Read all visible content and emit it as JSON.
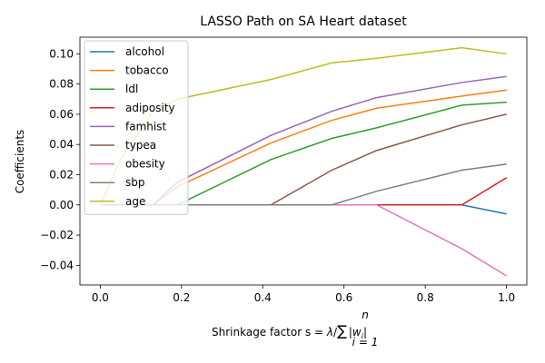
{
  "chart_data": {
    "type": "line",
    "title": "LASSO Path on SA Heart dataset",
    "xlabel": "Shrinkage factor s = λ/∑|wᵢ|",
    "xlabel_parts": {
      "prefix": "Shrinkage factor s = ",
      "lambda": "λ",
      "slash": "/",
      "sum": "∑",
      "sup": "n",
      "sub": "i = 1",
      "abs": "|w",
      "abs_sub": "i",
      "abs_close": "|"
    },
    "ylabel": "Coefficients",
    "xlim": [
      -0.05,
      1.05
    ],
    "ylim": [
      -0.053,
      0.111
    ],
    "xticks": [
      0.0,
      0.2,
      0.4,
      0.6,
      0.8,
      1.0
    ],
    "xtick_labels": [
      "0.0",
      "0.2",
      "0.4",
      "0.6",
      "0.8",
      "1.0"
    ],
    "yticks": [
      -0.04,
      -0.02,
      0.0,
      0.02,
      0.04,
      0.06,
      0.08,
      0.1
    ],
    "ytick_labels": [
      "−0.04",
      "−0.02",
      "0.00",
      "0.02",
      "0.04",
      "0.06",
      "0.08",
      "0.10"
    ],
    "grid": false,
    "legend_position": "top-left",
    "series": [
      {
        "name": "alcohol",
        "color": "#1f77b4",
        "x": [
          0,
          0.68,
          0.89,
          1.0
        ],
        "y": [
          0,
          0,
          0,
          -0.006
        ]
      },
      {
        "name": "tobacco",
        "color": "#ff7f0e",
        "x": [
          0,
          0.13,
          0.19,
          0.42,
          0.57,
          0.68,
          0.89,
          1.0
        ],
        "y": [
          0,
          0,
          0.012,
          0.041,
          0.056,
          0.064,
          0.072,
          0.076
        ]
      },
      {
        "name": "ldl",
        "color": "#2ca02c",
        "x": [
          0,
          0.19,
          0.42,
          0.57,
          0.68,
          0.89,
          1.0
        ],
        "y": [
          0,
          0,
          0.03,
          0.044,
          0.051,
          0.066,
          0.068
        ]
      },
      {
        "name": "adiposity",
        "color": "#d62728",
        "x": [
          0,
          0.89,
          1.0
        ],
        "y": [
          0,
          0,
          0.018
        ]
      },
      {
        "name": "famhist",
        "color": "#9467bd",
        "x": [
          0,
          0.13,
          0.19,
          0.42,
          0.57,
          0.68,
          0.89,
          1.0
        ],
        "y": [
          0,
          0,
          0.015,
          0.046,
          0.062,
          0.071,
          0.081,
          0.085
        ]
      },
      {
        "name": "typea",
        "color": "#8c564b",
        "x": [
          0,
          0.42,
          0.57,
          0.68,
          0.89,
          1.0
        ],
        "y": [
          0,
          0,
          0.023,
          0.036,
          0.053,
          0.06
        ]
      },
      {
        "name": "obesity",
        "color": "#e377c2",
        "x": [
          0,
          0.68,
          0.89,
          1.0
        ],
        "y": [
          0,
          0,
          -0.029,
          -0.047
        ]
      },
      {
        "name": "sbp",
        "color": "#7f7f7f",
        "x": [
          0,
          0.57,
          0.68,
          0.89,
          1.0
        ],
        "y": [
          0,
          0,
          0.009,
          0.023,
          0.027
        ]
      },
      {
        "name": "age",
        "color": "#bcbd22",
        "x": [
          0,
          0.05,
          0.13,
          0.19,
          0.42,
          0.57,
          0.68,
          0.89,
          1.0
        ],
        "y": [
          0,
          0.03,
          0.062,
          0.07,
          0.083,
          0.094,
          0.097,
          0.104,
          0.1
        ]
      }
    ]
  }
}
